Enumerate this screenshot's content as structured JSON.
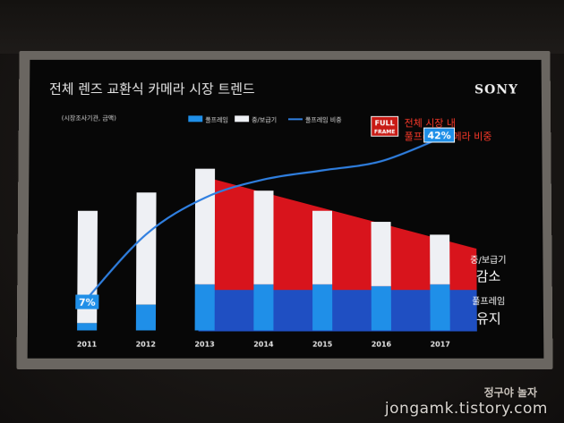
{
  "slide": {
    "title": "전체 렌즈 교환식 카메라 시장 트렌드",
    "brand": "SONY",
    "note": "(시장조사기관, 금액)",
    "legend_fullframe": "풀프레임",
    "legend_mid": "중/보급기",
    "legend_line": "풀프레임 비중",
    "badge_line1": "FULL",
    "badge_line2": "FRAME",
    "callout_line1": "전체 시장 내",
    "callout_line2": "풀프레임 카메라 비중",
    "mid_label_small": "중/보급기",
    "mid_label_big": "감소",
    "ff_label_small": "풀프레임",
    "ff_label_big": "유지",
    "label_start": "7%",
    "label_end": "42%"
  },
  "watermark": {
    "name": "정구야 놀자",
    "url": "jongamk.tistory.com"
  },
  "colors": {
    "fullframe": "#1f8fe8",
    "mid": "#eef0f4",
    "line": "#2f7fe0",
    "red_area": "#d8141c",
    "blue_area": "#1f4fc2",
    "callout": "#ff3a2a"
  },
  "chart_data": {
    "type": "bar",
    "stacked": true,
    "categories": [
      "2011",
      "2012",
      "2013",
      "2014",
      "2015",
      "2016",
      "2017"
    ],
    "series": [
      {
        "name": "풀프레임",
        "values": [
          4,
          14,
          25,
          25,
          25,
          24,
          25
        ]
      },
      {
        "name": "중/보급기",
        "values": [
          61,
          61,
          63,
          51,
          40,
          35,
          27
        ]
      },
      {
        "name": "풀프레임 비중",
        "type": "line",
        "values": [
          7,
          21,
          29,
          33,
          35,
          37,
          42
        ]
      }
    ],
    "ylim": [
      0,
      100
    ],
    "legend": "top-left",
    "grid": false
  }
}
